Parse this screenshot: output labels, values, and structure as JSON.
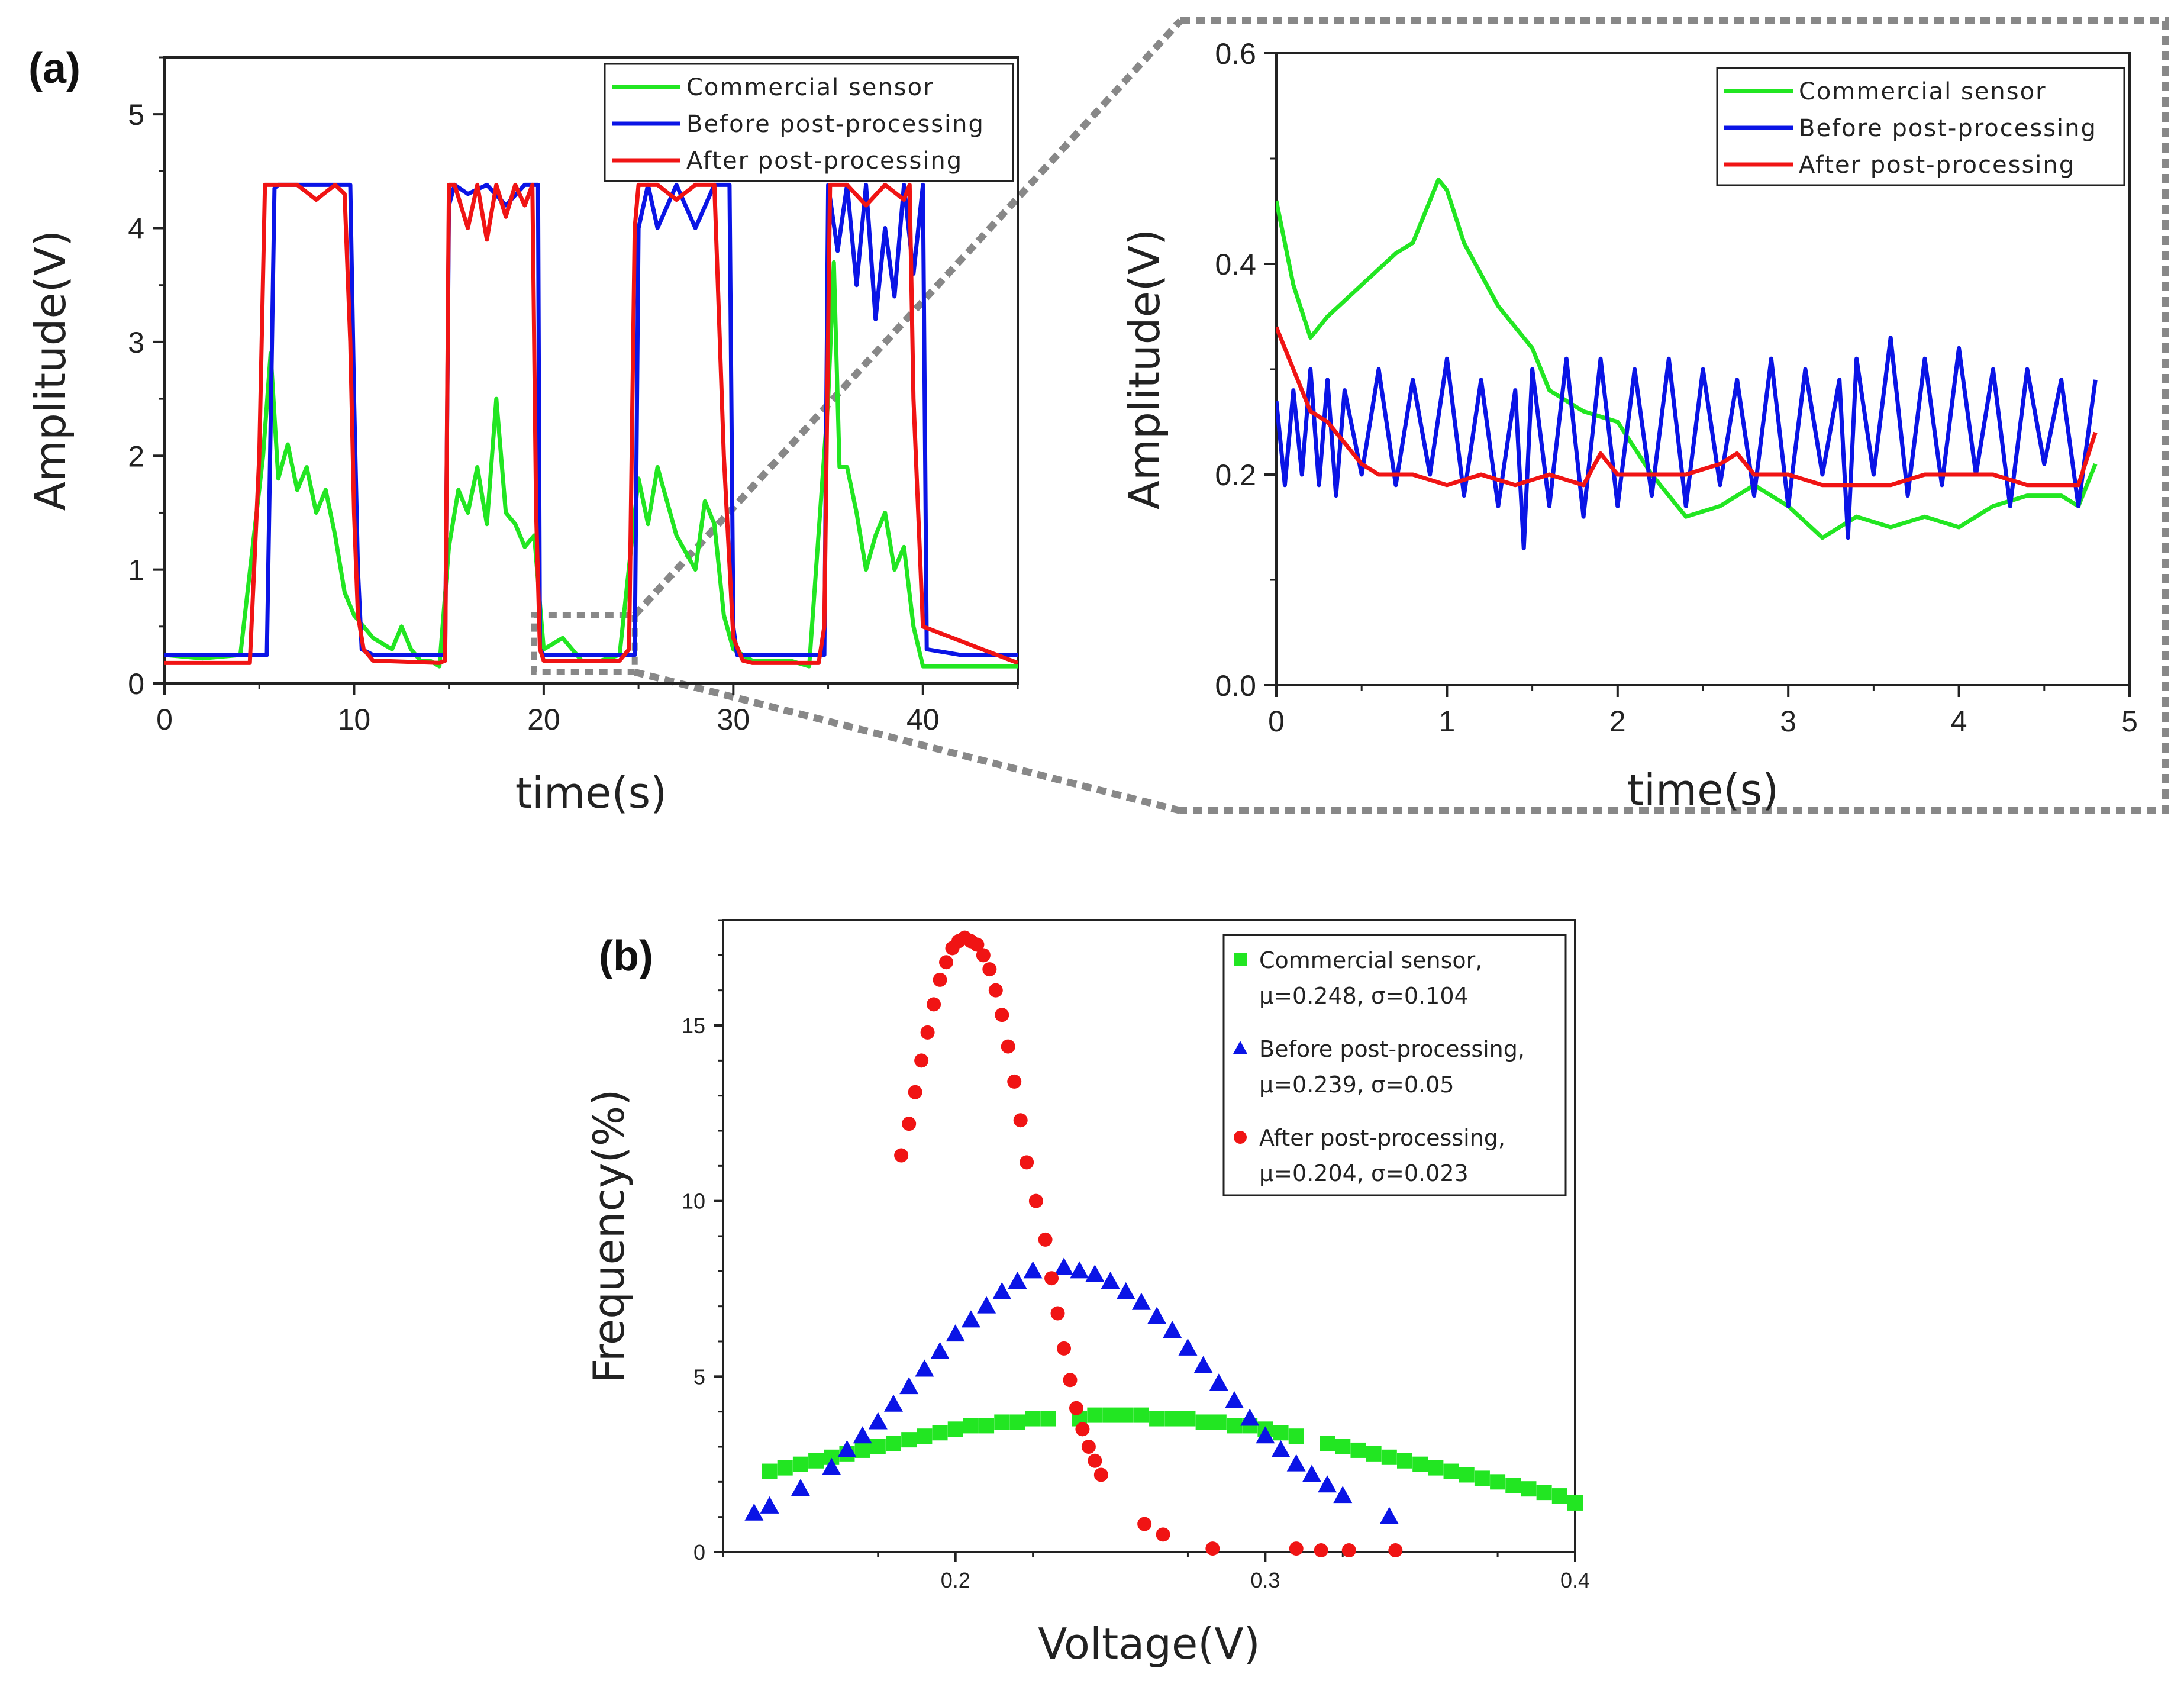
{
  "panel_labels": {
    "a": "(a)",
    "b": "(b)"
  },
  "legend_a": [
    "Commercial sensor",
    "Before post-processing",
    "After post-processing"
  ],
  "legend_b": [
    {
      "line1": "Commercial sensor,",
      "line2": "μ=0.248, σ=0.104"
    },
    {
      "line1": "Before post-processing,",
      "line2": "μ=0.239, σ=0.05"
    },
    {
      "line1": "After post-processing,",
      "line2": "μ=0.204, σ=0.023"
    }
  ],
  "colors": {
    "green": "#22e622",
    "blue": "#0a14e6",
    "red": "#f01414",
    "zoom_box": "#888888"
  },
  "chart_data": [
    {
      "id": "a_main",
      "type": "line",
      "title": "",
      "xlabel": "time(s)",
      "ylabel": "Amplitude(V)",
      "xlim": [
        0,
        45
      ],
      "ylim": [
        0,
        5.5
      ],
      "xticks": [
        0,
        10,
        20,
        30,
        40
      ],
      "yticks": [
        0,
        1,
        2,
        3,
        4,
        5
      ],
      "legend_position": "top-right",
      "zoom_region": {
        "x": [
          19.5,
          24.8
        ],
        "y": [
          0.1,
          0.6
        ]
      },
      "series": [
        {
          "name": "Commercial sensor",
          "color": "#22e622",
          "x": [
            0,
            2,
            4,
            5.2,
            5.6,
            6,
            6.5,
            7,
            7.5,
            8,
            8.5,
            9,
            9.5,
            10,
            10.5,
            11,
            12,
            12.5,
            13,
            13.5,
            14,
            14.5,
            15,
            15.5,
            16,
            16.5,
            17,
            17.5,
            18,
            18.5,
            19,
            19.5,
            20,
            21,
            22,
            23,
            24,
            25,
            25.5,
            26,
            27,
            28,
            28.5,
            29,
            29.5,
            30,
            31,
            32,
            33,
            34,
            35,
            35.3,
            35.6,
            36,
            36.5,
            37,
            37.5,
            38,
            38.5,
            39,
            39.5,
            40,
            42,
            45
          ],
          "y": [
            0.25,
            0.22,
            0.25,
            2.0,
            2.9,
            1.8,
            2.1,
            1.7,
            1.9,
            1.5,
            1.7,
            1.3,
            0.8,
            0.6,
            0.5,
            0.4,
            0.3,
            0.5,
            0.3,
            0.2,
            0.2,
            0.15,
            1.2,
            1.7,
            1.5,
            1.9,
            1.4,
            2.5,
            1.5,
            1.4,
            1.2,
            1.3,
            0.3,
            0.4,
            0.2,
            0.2,
            0.25,
            1.8,
            1.4,
            1.9,
            1.3,
            1.0,
            1.6,
            1.4,
            0.6,
            0.3,
            0.2,
            0.2,
            0.2,
            0.15,
            2.5,
            3.7,
            1.9,
            1.9,
            1.5,
            1.0,
            1.3,
            1.5,
            1.0,
            1.2,
            0.5,
            0.15,
            0.15,
            0.15
          ]
        },
        {
          "name": "Before post-processing",
          "color": "#0a14e6",
          "x": [
            0,
            4,
            5.4,
            5.8,
            6,
            7,
            8,
            9,
            9.8,
            10,
            10.2,
            10.4,
            11,
            14,
            14.8,
            15,
            15.3,
            16,
            17,
            18,
            19,
            19.7,
            19.8,
            20,
            24,
            24.8,
            25,
            25.5,
            26,
            27,
            28,
            29,
            29.8,
            30,
            30.2,
            31,
            34,
            34.8,
            35,
            35.5,
            36,
            36.5,
            37,
            37.5,
            38,
            38.5,
            39,
            39.5,
            40,
            40.2,
            42,
            45
          ],
          "y": [
            0.25,
            0.25,
            0.25,
            4.35,
            4.38,
            4.38,
            4.38,
            4.38,
            4.38,
            2.5,
            1.0,
            0.3,
            0.25,
            0.25,
            0.25,
            4.2,
            4.38,
            4.3,
            4.38,
            4.2,
            4.38,
            4.38,
            0.3,
            0.25,
            0.25,
            0.25,
            4.0,
            4.38,
            4.0,
            4.38,
            4.0,
            4.38,
            4.38,
            0.5,
            0.25,
            0.25,
            0.25,
            0.25,
            4.38,
            3.8,
            4.38,
            3.5,
            4.38,
            3.2,
            4.0,
            3.4,
            4.38,
            3.6,
            4.38,
            0.3,
            0.25,
            0.25
          ]
        },
        {
          "name": "After post-processing",
          "color": "#f01414",
          "x": [
            0,
            4.5,
            5.0,
            5.3,
            5.5,
            6,
            7,
            8,
            9,
            9.5,
            9.8,
            10,
            10.2,
            10.5,
            11,
            14.5,
            14.8,
            15,
            15.3,
            16,
            16.5,
            17,
            17.5,
            18,
            18.5,
            19,
            19.4,
            19.6,
            19.8,
            20,
            24,
            24.5,
            24.8,
            25,
            26,
            27,
            28,
            29,
            29.5,
            30,
            30.5,
            31,
            34.5,
            34.8,
            35.1,
            36,
            37,
            38,
            39,
            39.3,
            39.5,
            40,
            45
          ],
          "y": [
            0.18,
            0.18,
            2.0,
            4.38,
            4.38,
            4.38,
            4.38,
            4.25,
            4.38,
            4.3,
            3.0,
            1.5,
            0.6,
            0.3,
            0.2,
            0.18,
            0.2,
            4.38,
            4.38,
            4.0,
            4.38,
            3.9,
            4.38,
            4.1,
            4.38,
            4.2,
            4.38,
            1.5,
            0.3,
            0.2,
            0.2,
            0.3,
            4.0,
            4.38,
            4.38,
            4.25,
            4.38,
            4.38,
            2.0,
            0.4,
            0.2,
            0.18,
            0.18,
            0.5,
            4.38,
            4.38,
            4.2,
            4.38,
            4.25,
            4.38,
            2.5,
            0.5,
            0.18
          ]
        }
      ]
    },
    {
      "id": "a_zoom",
      "type": "line",
      "title": "",
      "xlabel": "time(s)",
      "ylabel": "Amplitude(V)",
      "xlim": [
        0,
        5
      ],
      "ylim": [
        0,
        0.6
      ],
      "xticks": [
        0,
        1,
        2,
        3,
        4,
        5
      ],
      "yticks": [
        0.0,
        0.2,
        0.4,
        0.6
      ],
      "ytick_labels": [
        "0.0",
        "0.2",
        "0.4",
        "0.6"
      ],
      "legend_position": "top-right",
      "series": [
        {
          "name": "Commercial sensor",
          "color": "#22e622",
          "x": [
            0,
            0.1,
            0.2,
            0.3,
            0.5,
            0.7,
            0.8,
            0.9,
            0.95,
            1.0,
            1.1,
            1.3,
            1.5,
            1.6,
            1.8,
            2.0,
            2.2,
            2.4,
            2.6,
            2.8,
            3.0,
            3.2,
            3.4,
            3.6,
            3.8,
            4.0,
            4.2,
            4.4,
            4.6,
            4.7,
            4.8
          ],
          "y": [
            0.46,
            0.38,
            0.33,
            0.35,
            0.38,
            0.41,
            0.42,
            0.46,
            0.48,
            0.47,
            0.42,
            0.36,
            0.32,
            0.28,
            0.26,
            0.25,
            0.2,
            0.16,
            0.17,
            0.19,
            0.17,
            0.14,
            0.16,
            0.15,
            0.16,
            0.15,
            0.17,
            0.18,
            0.18,
            0.17,
            0.21
          ]
        },
        {
          "name": "Before post-processing",
          "color": "#0a14e6",
          "x": [
            0,
            0.05,
            0.1,
            0.15,
            0.2,
            0.25,
            0.3,
            0.35,
            0.4,
            0.5,
            0.6,
            0.7,
            0.8,
            0.9,
            1.0,
            1.1,
            1.2,
            1.3,
            1.4,
            1.45,
            1.5,
            1.6,
            1.7,
            1.8,
            1.9,
            2.0,
            2.1,
            2.2,
            2.3,
            2.4,
            2.5,
            2.6,
            2.7,
            2.8,
            2.9,
            3.0,
            3.1,
            3.2,
            3.3,
            3.35,
            3.4,
            3.5,
            3.6,
            3.7,
            3.8,
            3.9,
            4.0,
            4.1,
            4.2,
            4.3,
            4.4,
            4.5,
            4.6,
            4.7,
            4.8
          ],
          "y": [
            0.27,
            0.19,
            0.28,
            0.2,
            0.3,
            0.19,
            0.29,
            0.18,
            0.28,
            0.2,
            0.3,
            0.19,
            0.29,
            0.2,
            0.31,
            0.18,
            0.29,
            0.17,
            0.28,
            0.13,
            0.3,
            0.17,
            0.31,
            0.16,
            0.31,
            0.17,
            0.3,
            0.18,
            0.31,
            0.17,
            0.3,
            0.19,
            0.29,
            0.18,
            0.31,
            0.17,
            0.3,
            0.2,
            0.29,
            0.14,
            0.31,
            0.2,
            0.33,
            0.18,
            0.31,
            0.19,
            0.32,
            0.2,
            0.3,
            0.17,
            0.3,
            0.21,
            0.29,
            0.17,
            0.29
          ]
        },
        {
          "name": "After post-processing",
          "color": "#f01414",
          "x": [
            0,
            0.1,
            0.2,
            0.3,
            0.4,
            0.5,
            0.6,
            0.8,
            1.0,
            1.2,
            1.4,
            1.6,
            1.8,
            1.9,
            2.0,
            2.2,
            2.4,
            2.6,
            2.7,
            2.8,
            3.0,
            3.2,
            3.4,
            3.6,
            3.8,
            4.0,
            4.2,
            4.4,
            4.6,
            4.7,
            4.8
          ],
          "y": [
            0.34,
            0.3,
            0.26,
            0.25,
            0.23,
            0.21,
            0.2,
            0.2,
            0.19,
            0.2,
            0.19,
            0.2,
            0.19,
            0.22,
            0.2,
            0.2,
            0.2,
            0.21,
            0.22,
            0.2,
            0.2,
            0.19,
            0.19,
            0.19,
            0.2,
            0.2,
            0.2,
            0.19,
            0.19,
            0.19,
            0.24
          ]
        }
      ]
    },
    {
      "id": "b",
      "type": "scatter",
      "title": "",
      "xlabel": "Voltage(V)",
      "ylabel": "Frequency(%)",
      "xlim": [
        0.125,
        0.4
      ],
      "ylim": [
        0,
        18
      ],
      "xticks": [
        0.2,
        0.3,
        0.4
      ],
      "yticks": [
        0,
        5,
        10,
        15
      ],
      "legend_position": "top-right",
      "series": [
        {
          "name": "Commercial sensor",
          "marker": "square",
          "color": "#22e622",
          "x": [
            0.14,
            0.145,
            0.15,
            0.155,
            0.16,
            0.165,
            0.17,
            0.175,
            0.18,
            0.185,
            0.19,
            0.195,
            0.2,
            0.205,
            0.21,
            0.215,
            0.22,
            0.225,
            0.23,
            0.24,
            0.245,
            0.25,
            0.255,
            0.26,
            0.265,
            0.27,
            0.275,
            0.28,
            0.285,
            0.29,
            0.295,
            0.3,
            0.305,
            0.31,
            0.32,
            0.325,
            0.33,
            0.335,
            0.34,
            0.345,
            0.35,
            0.355,
            0.36,
            0.365,
            0.37,
            0.375,
            0.38,
            0.385,
            0.39,
            0.395,
            0.4
          ],
          "y": [
            2.3,
            2.4,
            2.5,
            2.6,
            2.7,
            2.8,
            2.9,
            3.0,
            3.1,
            3.2,
            3.3,
            3.4,
            3.5,
            3.6,
            3.6,
            3.7,
            3.7,
            3.8,
            3.8,
            3.8,
            3.9,
            3.9,
            3.9,
            3.9,
            3.8,
            3.8,
            3.8,
            3.7,
            3.7,
            3.6,
            3.6,
            3.5,
            3.4,
            3.3,
            3.1,
            3.0,
            2.9,
            2.8,
            2.7,
            2.6,
            2.5,
            2.4,
            2.3,
            2.2,
            2.1,
            2.0,
            1.9,
            1.8,
            1.7,
            1.6,
            1.4
          ]
        },
        {
          "name": "Before post-processing",
          "marker": "triangle",
          "color": "#0a14e6",
          "x": [
            0.135,
            0.14,
            0.15,
            0.16,
            0.165,
            0.17,
            0.175,
            0.18,
            0.185,
            0.19,
            0.195,
            0.2,
            0.205,
            0.21,
            0.215,
            0.22,
            0.225,
            0.235,
            0.24,
            0.245,
            0.25,
            0.255,
            0.26,
            0.265,
            0.27,
            0.275,
            0.28,
            0.285,
            0.29,
            0.295,
            0.3,
            0.305,
            0.31,
            0.315,
            0.32,
            0.325,
            0.34
          ],
          "y": [
            1.1,
            1.3,
            1.8,
            2.4,
            2.9,
            3.3,
            3.7,
            4.2,
            4.7,
            5.2,
            5.7,
            6.2,
            6.6,
            7.0,
            7.4,
            7.7,
            8.0,
            8.1,
            8.0,
            7.9,
            7.7,
            7.4,
            7.1,
            6.7,
            6.3,
            5.8,
            5.3,
            4.8,
            4.3,
            3.8,
            3.3,
            2.9,
            2.5,
            2.2,
            1.9,
            1.6,
            1.0
          ]
        },
        {
          "name": "After post-processing",
          "marker": "circle",
          "color": "#f01414",
          "x": [
            0.1825,
            0.185,
            0.187,
            0.189,
            0.191,
            0.193,
            0.195,
            0.197,
            0.199,
            0.201,
            0.203,
            0.205,
            0.207,
            0.209,
            0.211,
            0.213,
            0.215,
            0.217,
            0.219,
            0.221,
            0.223,
            0.226,
            0.229,
            0.231,
            0.233,
            0.235,
            0.237,
            0.239,
            0.241,
            0.243,
            0.245,
            0.247,
            0.261,
            0.267,
            0.283,
            0.31,
            0.318,
            0.327,
            0.342
          ],
          "y": [
            11.3,
            12.2,
            13.1,
            14.0,
            14.8,
            15.6,
            16.3,
            16.8,
            17.2,
            17.4,
            17.5,
            17.4,
            17.3,
            17.0,
            16.6,
            16.0,
            15.3,
            14.4,
            13.4,
            12.3,
            11.1,
            10.0,
            8.9,
            7.8,
            6.8,
            5.8,
            4.9,
            4.1,
            3.5,
            3.0,
            2.6,
            2.2,
            0.8,
            0.5,
            0.1,
            0.1,
            0.05,
            0.05,
            0.05
          ]
        }
      ],
      "legend_entries": [
        {
          "name": "Commercial sensor,",
          "stats": "μ=0.248, σ=0.104"
        },
        {
          "name": "Before post-processing,",
          "stats": "μ=0.239, σ=0.05"
        },
        {
          "name": "After post-processing,",
          "stats": "μ=0.204, σ=0.023"
        }
      ]
    }
  ]
}
